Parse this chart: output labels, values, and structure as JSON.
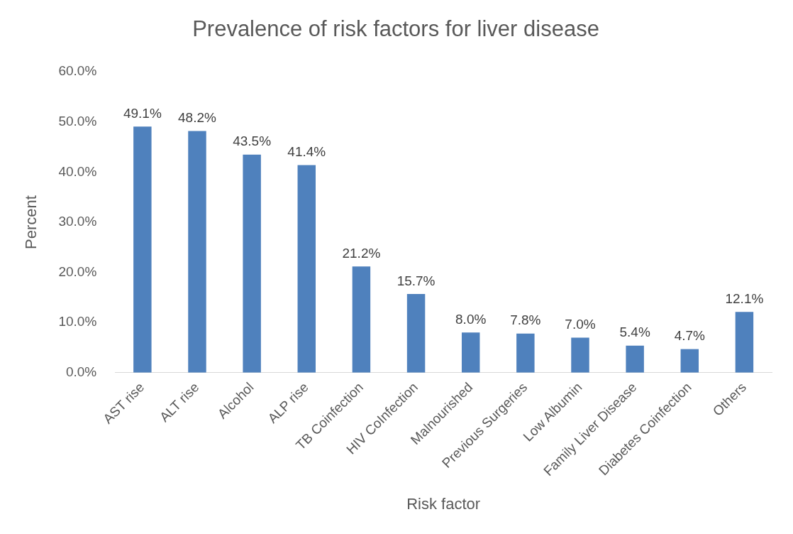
{
  "chart_data": {
    "type": "bar",
    "title": "Prevalence of risk factors for liver disease",
    "xlabel": "Risk factor",
    "ylabel": "Percent",
    "categories": [
      "AST rise",
      "ALT rise",
      "Alcohol",
      "ALP rise",
      "TB Coinfection",
      "HIV CoInfection",
      "Malnourished",
      "Previous Surgeries",
      "Low Albumin",
      "Family Liver Disease",
      "Diabetes Coinfection",
      "Others"
    ],
    "values": [
      49.1,
      48.2,
      43.5,
      41.4,
      21.2,
      15.7,
      8.0,
      7.8,
      7.0,
      5.4,
      4.7,
      12.1
    ],
    "value_labels": [
      "49.1%",
      "48.2%",
      "43.5%",
      "41.4%",
      "21.2%",
      "15.7%",
      "8.0%",
      "7.8%",
      "7.0%",
      "5.4%",
      "4.7%",
      "12.1%"
    ],
    "color": "#4f81bd",
    "ylim": [
      0,
      60
    ],
    "yticks": [
      {
        "value": 0,
        "label": "0.0%"
      },
      {
        "value": 10,
        "label": "10.0%"
      },
      {
        "value": 20,
        "label": "20.0%"
      },
      {
        "value": 30,
        "label": "30.0%"
      },
      {
        "value": 40,
        "label": "40.0%"
      },
      {
        "value": 50,
        "label": "50.0%"
      },
      {
        "value": 60,
        "label": "60.0%"
      }
    ],
    "grid": false,
    "legend": false
  }
}
